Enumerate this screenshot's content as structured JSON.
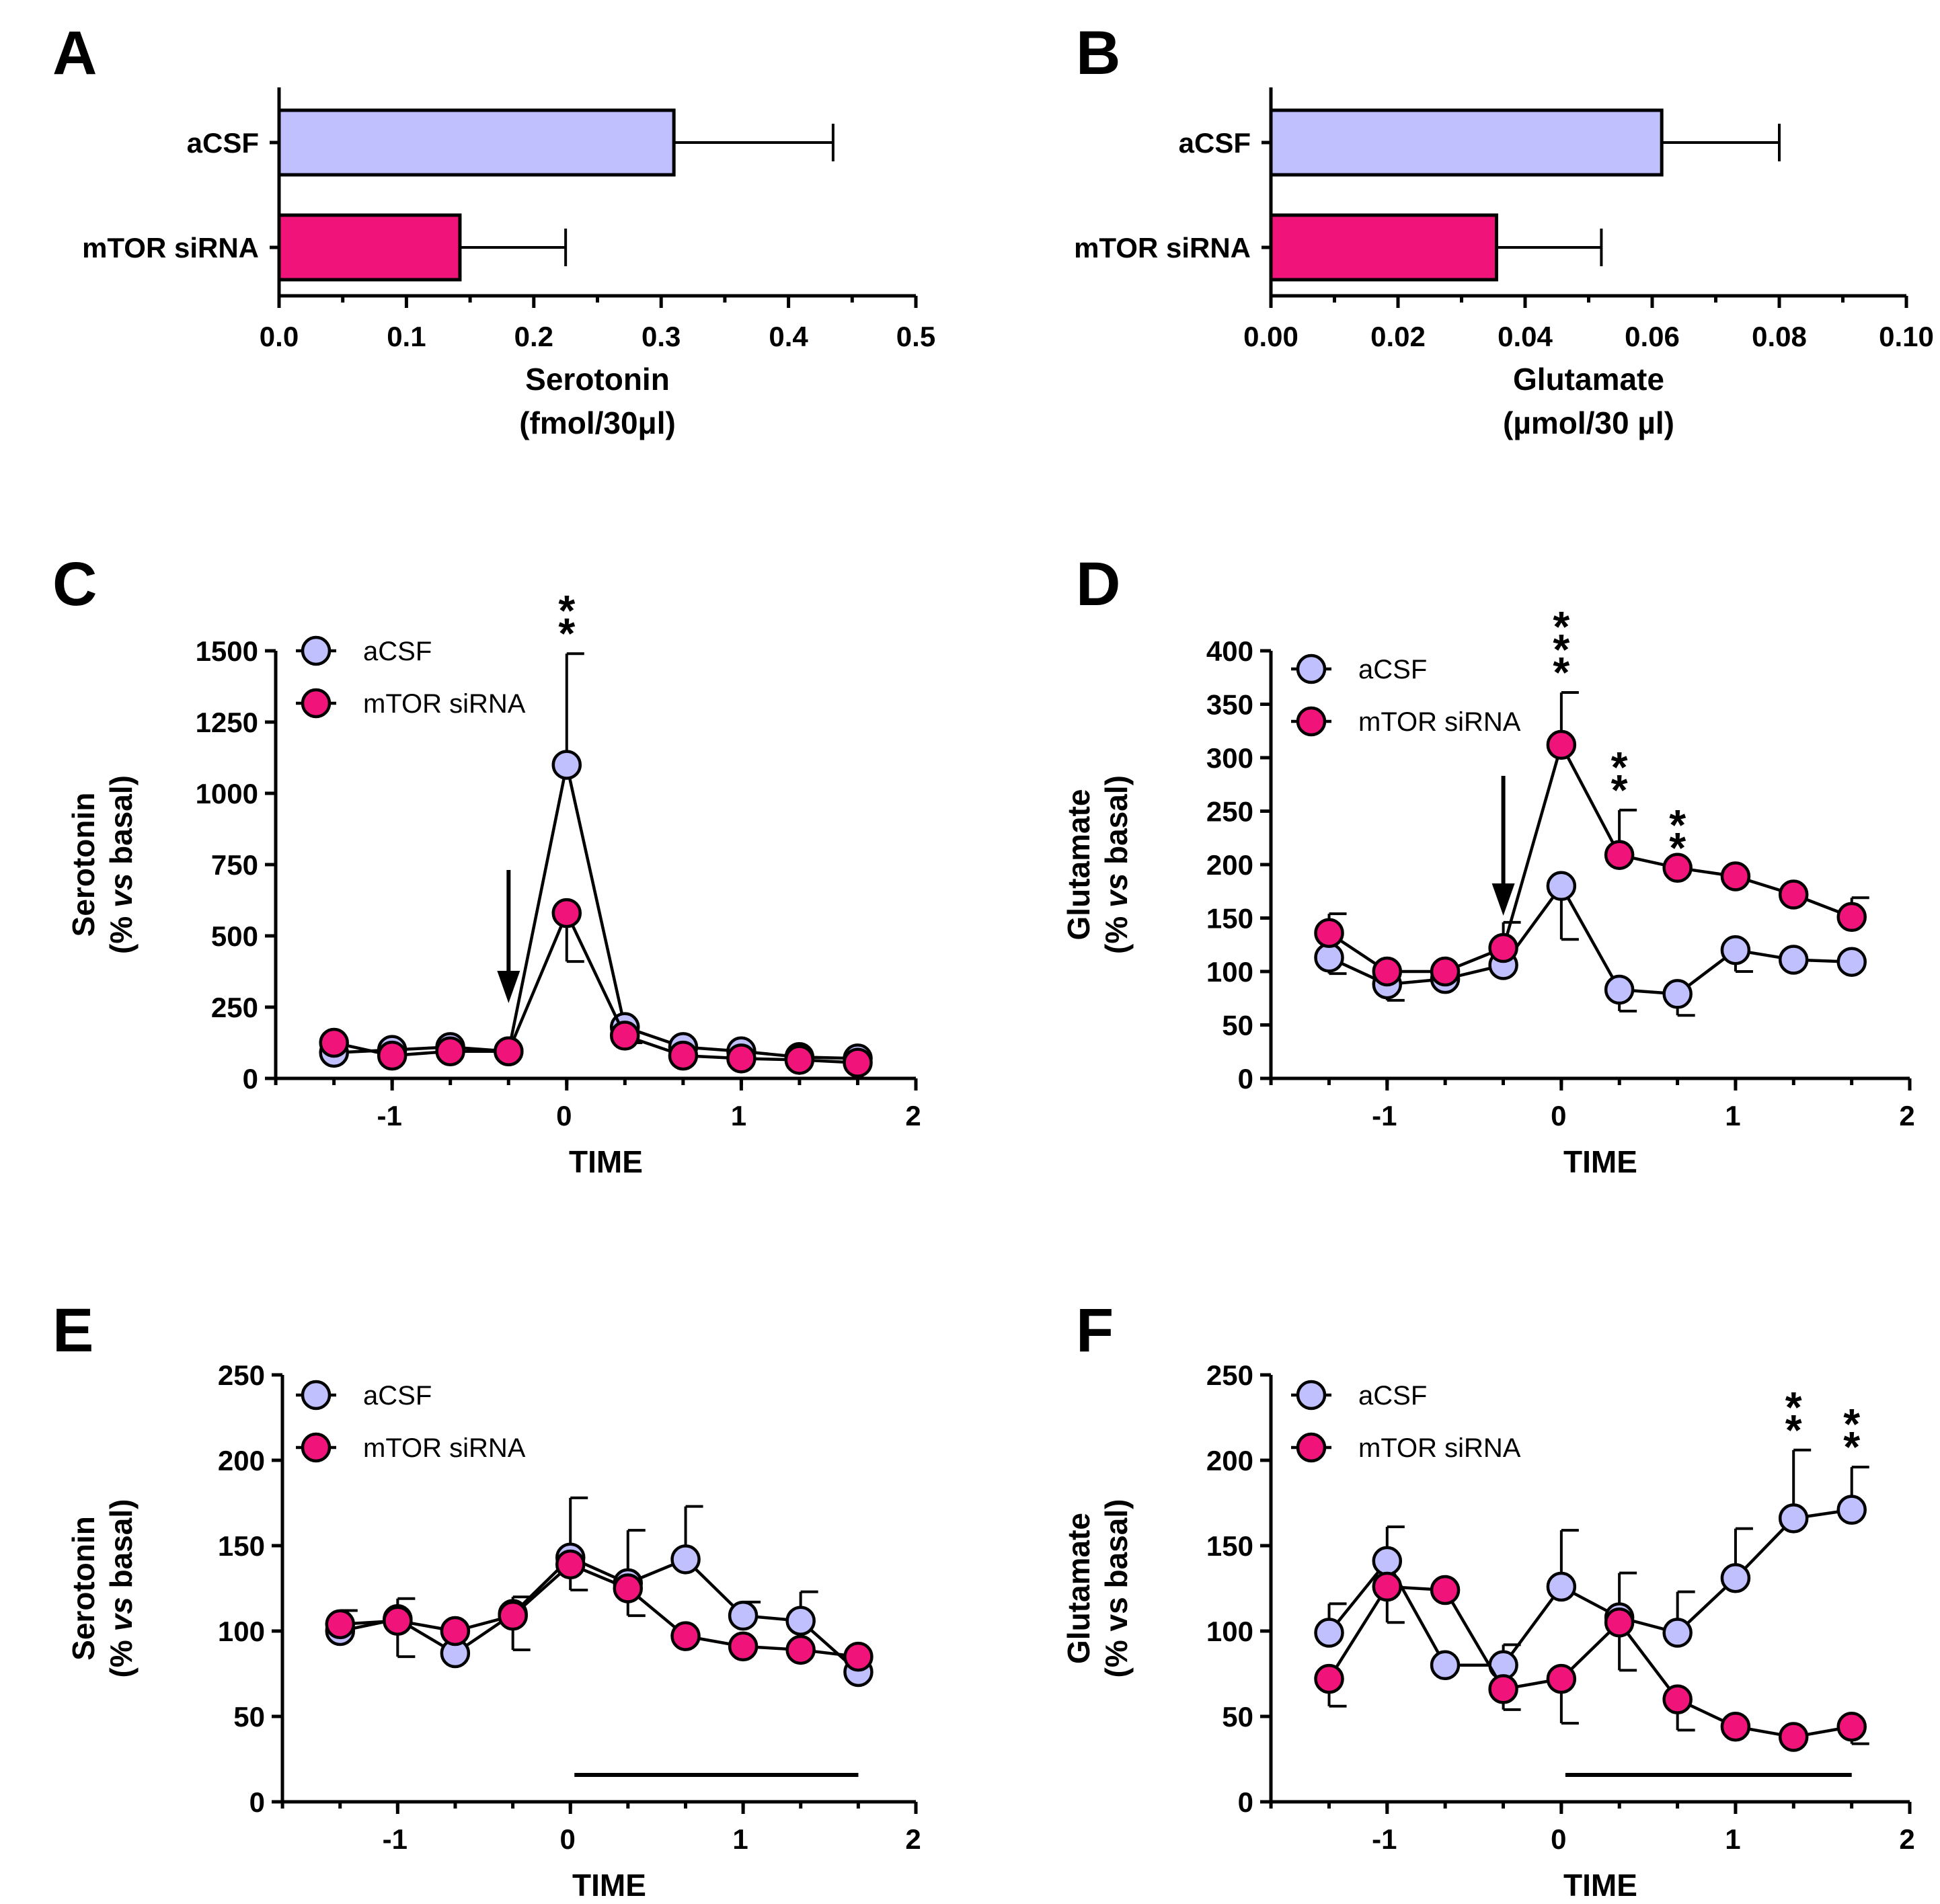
{
  "colors": {
    "acsf": "#c0c0ff",
    "mtor": "#f0147a",
    "ink": "#000000"
  },
  "chart_data": [
    {
      "id": "A",
      "type": "bar",
      "orientation": "horizontal",
      "panel_label": "A",
      "categories": [
        "aCSF",
        "mTOR siRNA"
      ],
      "values": [
        0.31,
        0.142
      ],
      "errors": [
        0.125,
        0.083
      ],
      "xlim": [
        0,
        0.5
      ],
      "ticks": [
        0,
        0.1,
        0.2,
        0.3,
        0.4,
        0.5
      ],
      "tick_labels": [
        "0.0",
        "0.1",
        "0.2",
        "0.3",
        "0.4",
        "0.5"
      ],
      "xlabel_lines": [
        "Serotonin",
        "(fmol/30μl)"
      ]
    },
    {
      "id": "B",
      "type": "bar",
      "orientation": "horizontal",
      "panel_label": "B",
      "categories": [
        "aCSF",
        "mTOR siRNA"
      ],
      "values": [
        0.0615,
        0.0355
      ],
      "errors": [
        0.0185,
        0.0165
      ],
      "xlim": [
        0,
        0.1
      ],
      "ticks": [
        0,
        0.02,
        0.04,
        0.06,
        0.08,
        0.1
      ],
      "tick_labels": [
        "0.00",
        "0.02",
        "0.04",
        "0.06",
        "0.08",
        "0.10"
      ],
      "xlabel_lines": [
        "Glutamate",
        "(µmol/30 µl)"
      ]
    },
    {
      "id": "C",
      "type": "line",
      "panel_label": "C",
      "xlabel": "TIME",
      "ylabel_lines": [
        "Serotonin",
        "(% vs basal)"
      ],
      "ylabel_italic_word": "vs",
      "xlim": [
        -1.667,
        2
      ],
      "ylim": [
        0,
        1500
      ],
      "xticks": [
        -1,
        0,
        1,
        2
      ],
      "xtick_labels": [
        "-1",
        "0",
        "1",
        "2"
      ],
      "yticks": [
        0,
        250,
        500,
        750,
        1000,
        1250,
        1500
      ],
      "ytick_labels": [
        "0",
        "250",
        "500",
        "750",
        "1000",
        "1250",
        "1500"
      ],
      "legend": [
        "aCSF",
        "mTOR siRNA"
      ],
      "series": [
        {
          "name": "aCSF",
          "color": "acsf",
          "x": [
            -1.333,
            -1,
            -0.667,
            -0.333,
            0,
            0.333,
            0.667,
            1,
            1.333,
            1.667
          ],
          "y": [
            90,
            100,
            110,
            95,
            1100,
            180,
            110,
            95,
            75,
            70
          ],
          "err_up": [
            0,
            0,
            0,
            0,
            390,
            0,
            0,
            0,
            0,
            0
          ]
        },
        {
          "name": "mTOR siRNA",
          "color": "mtor",
          "x": [
            -1.333,
            -1,
            -0.667,
            -0.333,
            0,
            0.333,
            0.667,
            1,
            1.333,
            1.667
          ],
          "y": [
            125,
            80,
            95,
            95,
            580,
            150,
            80,
            70,
            65,
            55
          ],
          "err_down": [
            0,
            0,
            0,
            0,
            170,
            25,
            0,
            0,
            0,
            0
          ]
        }
      ],
      "arrow_x": -0.333,
      "annotations": [
        {
          "text": "**",
          "x": 0
        }
      ]
    },
    {
      "id": "D",
      "type": "line",
      "panel_label": "D",
      "xlabel": "TIME",
      "ylabel_lines": [
        "Glutamate",
        "(% vs basal)"
      ],
      "ylabel_italic_word": "vs",
      "xlim": [
        -1.667,
        2
      ],
      "ylim": [
        0,
        400
      ],
      "xticks": [
        -1,
        0,
        1,
        2
      ],
      "xtick_labels": [
        "-1",
        "0",
        "1",
        "2"
      ],
      "yticks": [
        0,
        50,
        100,
        150,
        200,
        250,
        300,
        350,
        400
      ],
      "ytick_labels": [
        "0",
        "50",
        "100",
        "150",
        "200",
        "250",
        "300",
        "350",
        "400"
      ],
      "legend": [
        "aCSF",
        "mTOR siRNA"
      ],
      "series": [
        {
          "name": "aCSF",
          "color": "acsf",
          "x": [
            -1.333,
            -1,
            -0.667,
            -0.333,
            0,
            0.333,
            0.667,
            1,
            1.333,
            1.667
          ],
          "y": [
            113,
            88,
            93,
            106,
            180,
            83,
            79,
            120,
            111,
            109
          ],
          "err_down": [
            15,
            15,
            0,
            0,
            50,
            20,
            20,
            20,
            0,
            0
          ]
        },
        {
          "name": "mTOR siRNA",
          "color": "mtor",
          "x": [
            -1.333,
            -1,
            -0.667,
            -0.333,
            0,
            0.333,
            0.667,
            1,
            1.333,
            1.667
          ],
          "y": [
            136,
            100,
            100,
            122,
            312,
            209,
            197,
            189,
            172,
            151
          ],
          "err_up": [
            18,
            0,
            0,
            24,
            49,
            42,
            0,
            0,
            0,
            18
          ]
        }
      ],
      "arrow_x": -0.333,
      "annotations": [
        {
          "text": "***",
          "x": 0
        },
        {
          "text": "**",
          "x": 0.333
        },
        {
          "text": "**",
          "x": 0.667
        }
      ]
    },
    {
      "id": "E",
      "type": "line",
      "panel_label": "E",
      "xlabel": "TIME",
      "ylabel_lines": [
        "Serotonin",
        "(% vs basal)"
      ],
      "ylabel_italic_word": "vs",
      "xlim": [
        -1.667,
        2
      ],
      "ylim": [
        0,
        250
      ],
      "xticks": [
        -1,
        0,
        1,
        2
      ],
      "xtick_labels": [
        "-1",
        "0",
        "1",
        "2"
      ],
      "yticks": [
        0,
        50,
        100,
        150,
        200,
        250
      ],
      "ytick_labels": [
        "0",
        "50",
        "100",
        "150",
        "200",
        "250"
      ],
      "legend": [
        "aCSF",
        "mTOR siRNA"
      ],
      "series": [
        {
          "name": "aCSF",
          "color": "acsf",
          "x": [
            -1.333,
            -1,
            -0.667,
            -0.333,
            0,
            0.333,
            0.667,
            1,
            1.333,
            1.667
          ],
          "y": [
            100,
            107,
            87,
            110,
            143,
            128,
            142,
            109,
            106,
            76
          ],
          "err_up": [
            12,
            12,
            0,
            10,
            35,
            31,
            31,
            8,
            17,
            0
          ]
        },
        {
          "name": "mTOR siRNA",
          "color": "mtor",
          "x": [
            -1.333,
            -1,
            -0.667,
            -0.333,
            0,
            0.333,
            0.667,
            1,
            1.333,
            1.667
          ],
          "y": [
            104,
            106,
            100,
            109,
            139,
            125,
            97,
            91,
            89,
            85
          ],
          "err_down": [
            0,
            21,
            0,
            20,
            15,
            16,
            0,
            0,
            0,
            0
          ]
        }
      ],
      "treatment_bar": [
        0,
        1.667
      ],
      "annotations": []
    },
    {
      "id": "F",
      "type": "line",
      "panel_label": "F",
      "xlabel": "TIME",
      "ylabel_lines": [
        "Glutamate",
        "(% vs basal)"
      ],
      "ylabel_italic_word": "",
      "xlim": [
        -1.667,
        2
      ],
      "ylim": [
        0,
        250
      ],
      "xticks": [
        -1,
        0,
        1,
        2
      ],
      "xtick_labels": [
        "-1",
        "0",
        "1",
        "2"
      ],
      "yticks": [
        0,
        50,
        100,
        150,
        200,
        250
      ],
      "ytick_labels": [
        "0",
        "50",
        "100",
        "150",
        "200",
        "250"
      ],
      "legend": [
        "aCSF",
        "mTOR siRNA"
      ],
      "series": [
        {
          "name": "aCSF",
          "color": "acsf",
          "x": [
            -1.333,
            -1,
            -0.667,
            -0.333,
            0,
            0.333,
            0.667,
            1,
            1.333,
            1.667
          ],
          "y": [
            99,
            141,
            80,
            80,
            126,
            108,
            99,
            131,
            166,
            171
          ],
          "err_up": [
            17,
            20,
            0,
            12,
            33,
            26,
            24,
            29,
            40,
            25
          ]
        },
        {
          "name": "mTOR siRNA",
          "color": "mtor",
          "x": [
            -1.333,
            -1,
            -0.667,
            -0.333,
            0,
            0.333,
            0.667,
            1,
            1.333,
            1.667
          ],
          "y": [
            72,
            126,
            124,
            66,
            72,
            105,
            60,
            44,
            38,
            44
          ],
          "err_down": [
            16,
            21,
            0,
            12,
            26,
            28,
            18,
            0,
            0,
            10
          ]
        }
      ],
      "treatment_bar": [
        0,
        1.667
      ],
      "annotations": [
        {
          "text": "**",
          "x": 1.333
        },
        {
          "text": "**",
          "x": 1.667
        }
      ]
    }
  ]
}
